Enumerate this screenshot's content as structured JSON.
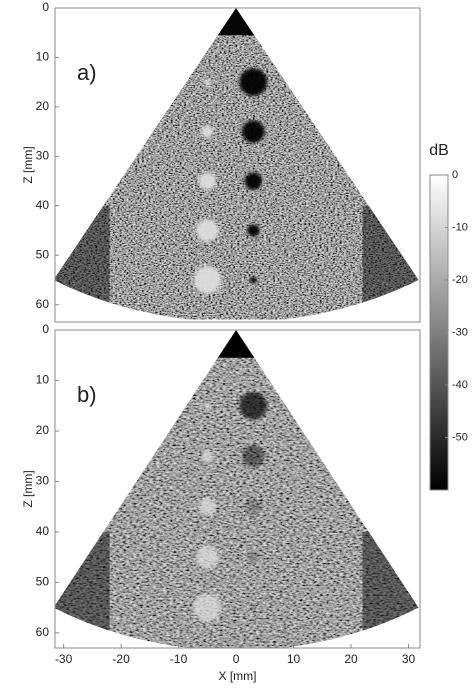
{
  "chart_data": [
    {
      "type": "image",
      "label": "a)",
      "ylabel": "Z [mm]",
      "xlim": [
        -31.5,
        32
      ],
      "ylim": [
        63.5,
        0
      ],
      "yticks": [
        0,
        10,
        20,
        30,
        40,
        50,
        60
      ]
    },
    {
      "type": "image",
      "label": "b)",
      "xlabel": "X [mm]",
      "ylabel": "Z [mm]",
      "xlim": [
        -31.5,
        32
      ],
      "ylim": [
        63,
        0
      ],
      "xticks": [
        -30,
        -20,
        -10,
        0,
        10,
        20,
        30
      ],
      "yticks": [
        0,
        10,
        20,
        30,
        40,
        50,
        60
      ]
    },
    {
      "type": "colorbar",
      "title": "dB",
      "ylim": [
        -60,
        0
      ],
      "yticks": [
        0,
        -10,
        -20,
        -30,
        -40,
        -50
      ]
    }
  ]
}
